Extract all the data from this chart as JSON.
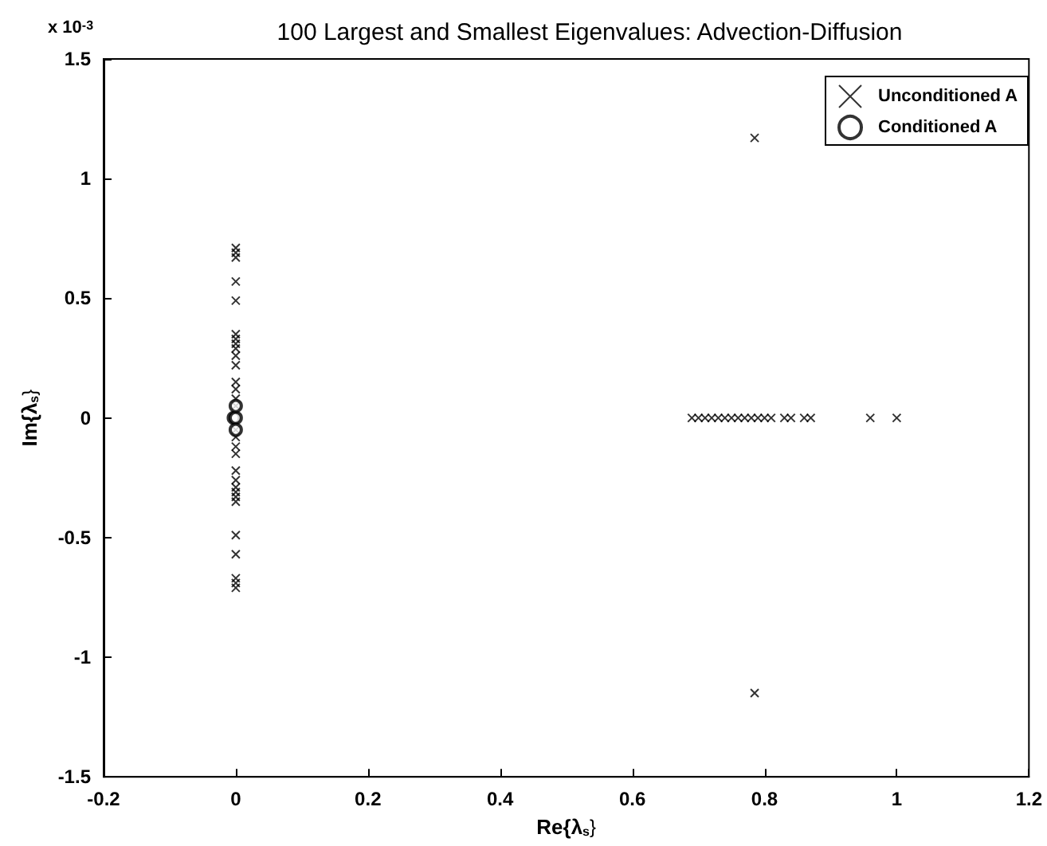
{
  "chart_data": {
    "type": "scatter",
    "title": "100 Largest and Smallest Eigenvalues: Advection-Diffusion",
    "xlabel": "Re{λ$_{s}$}",
    "ylabel": "Im{λ$_{s}$}",
    "annotations": [
      "x 10$^{-3}$"
    ],
    "xlim": [
      -0.2,
      1.2
    ],
    "xticks": [
      -0.2,
      0,
      0.2,
      0.4,
      0.6,
      0.8,
      1,
      1.2
    ],
    "ylim": [
      -1.5,
      1.5
    ],
    "yticks": [
      -1.5,
      -1,
      -0.5,
      0,
      0.5,
      1,
      1.5
    ],
    "grid": false,
    "legend": "top right",
    "series": [
      {
        "name": "Unconditioned A",
        "color": "#000000",
        "marker": "cross",
        "x": [
          0,
          0,
          0,
          0,
          0,
          0,
          0,
          0,
          0,
          0,
          0,
          0,
          0,
          0,
          0,
          0,
          0,
          0,
          0,
          0,
          0,
          0,
          0,
          0,
          0,
          0,
          0,
          0,
          0,
          0,
          0.69,
          0.7,
          0.71,
          0.72,
          0.73,
          0.74,
          0.75,
          0.76,
          0.77,
          0.78,
          0.79,
          0.8,
          0.81,
          0.83,
          0.84,
          0.86,
          0.87,
          0.96,
          1.0,
          0.785,
          0.785
        ],
        "values": [
          0.71,
          0.69,
          0.67,
          0.57,
          0.49,
          0.35,
          0.33,
          0.31,
          0.29,
          0.26,
          0.22,
          0.15,
          0.12,
          0.08,
          0.05,
          -0.05,
          -0.08,
          -0.12,
          -0.15,
          -0.22,
          -0.26,
          -0.29,
          -0.31,
          -0.33,
          -0.35,
          -0.49,
          -0.57,
          -0.67,
          -0.69,
          -0.71,
          0,
          0,
          0,
          0,
          0,
          0,
          0,
          0,
          0,
          0,
          0,
          0,
          0,
          0,
          0,
          0,
          0,
          0,
          0,
          1.17,
          -1.15
        ]
      },
      {
        "name": "Conditioned A",
        "color": "#000000",
        "marker": "circle",
        "x": [
          -0.003,
          0,
          0,
          0
        ],
        "values": [
          0,
          0,
          0.05,
          -0.05
        ]
      }
    ]
  }
}
